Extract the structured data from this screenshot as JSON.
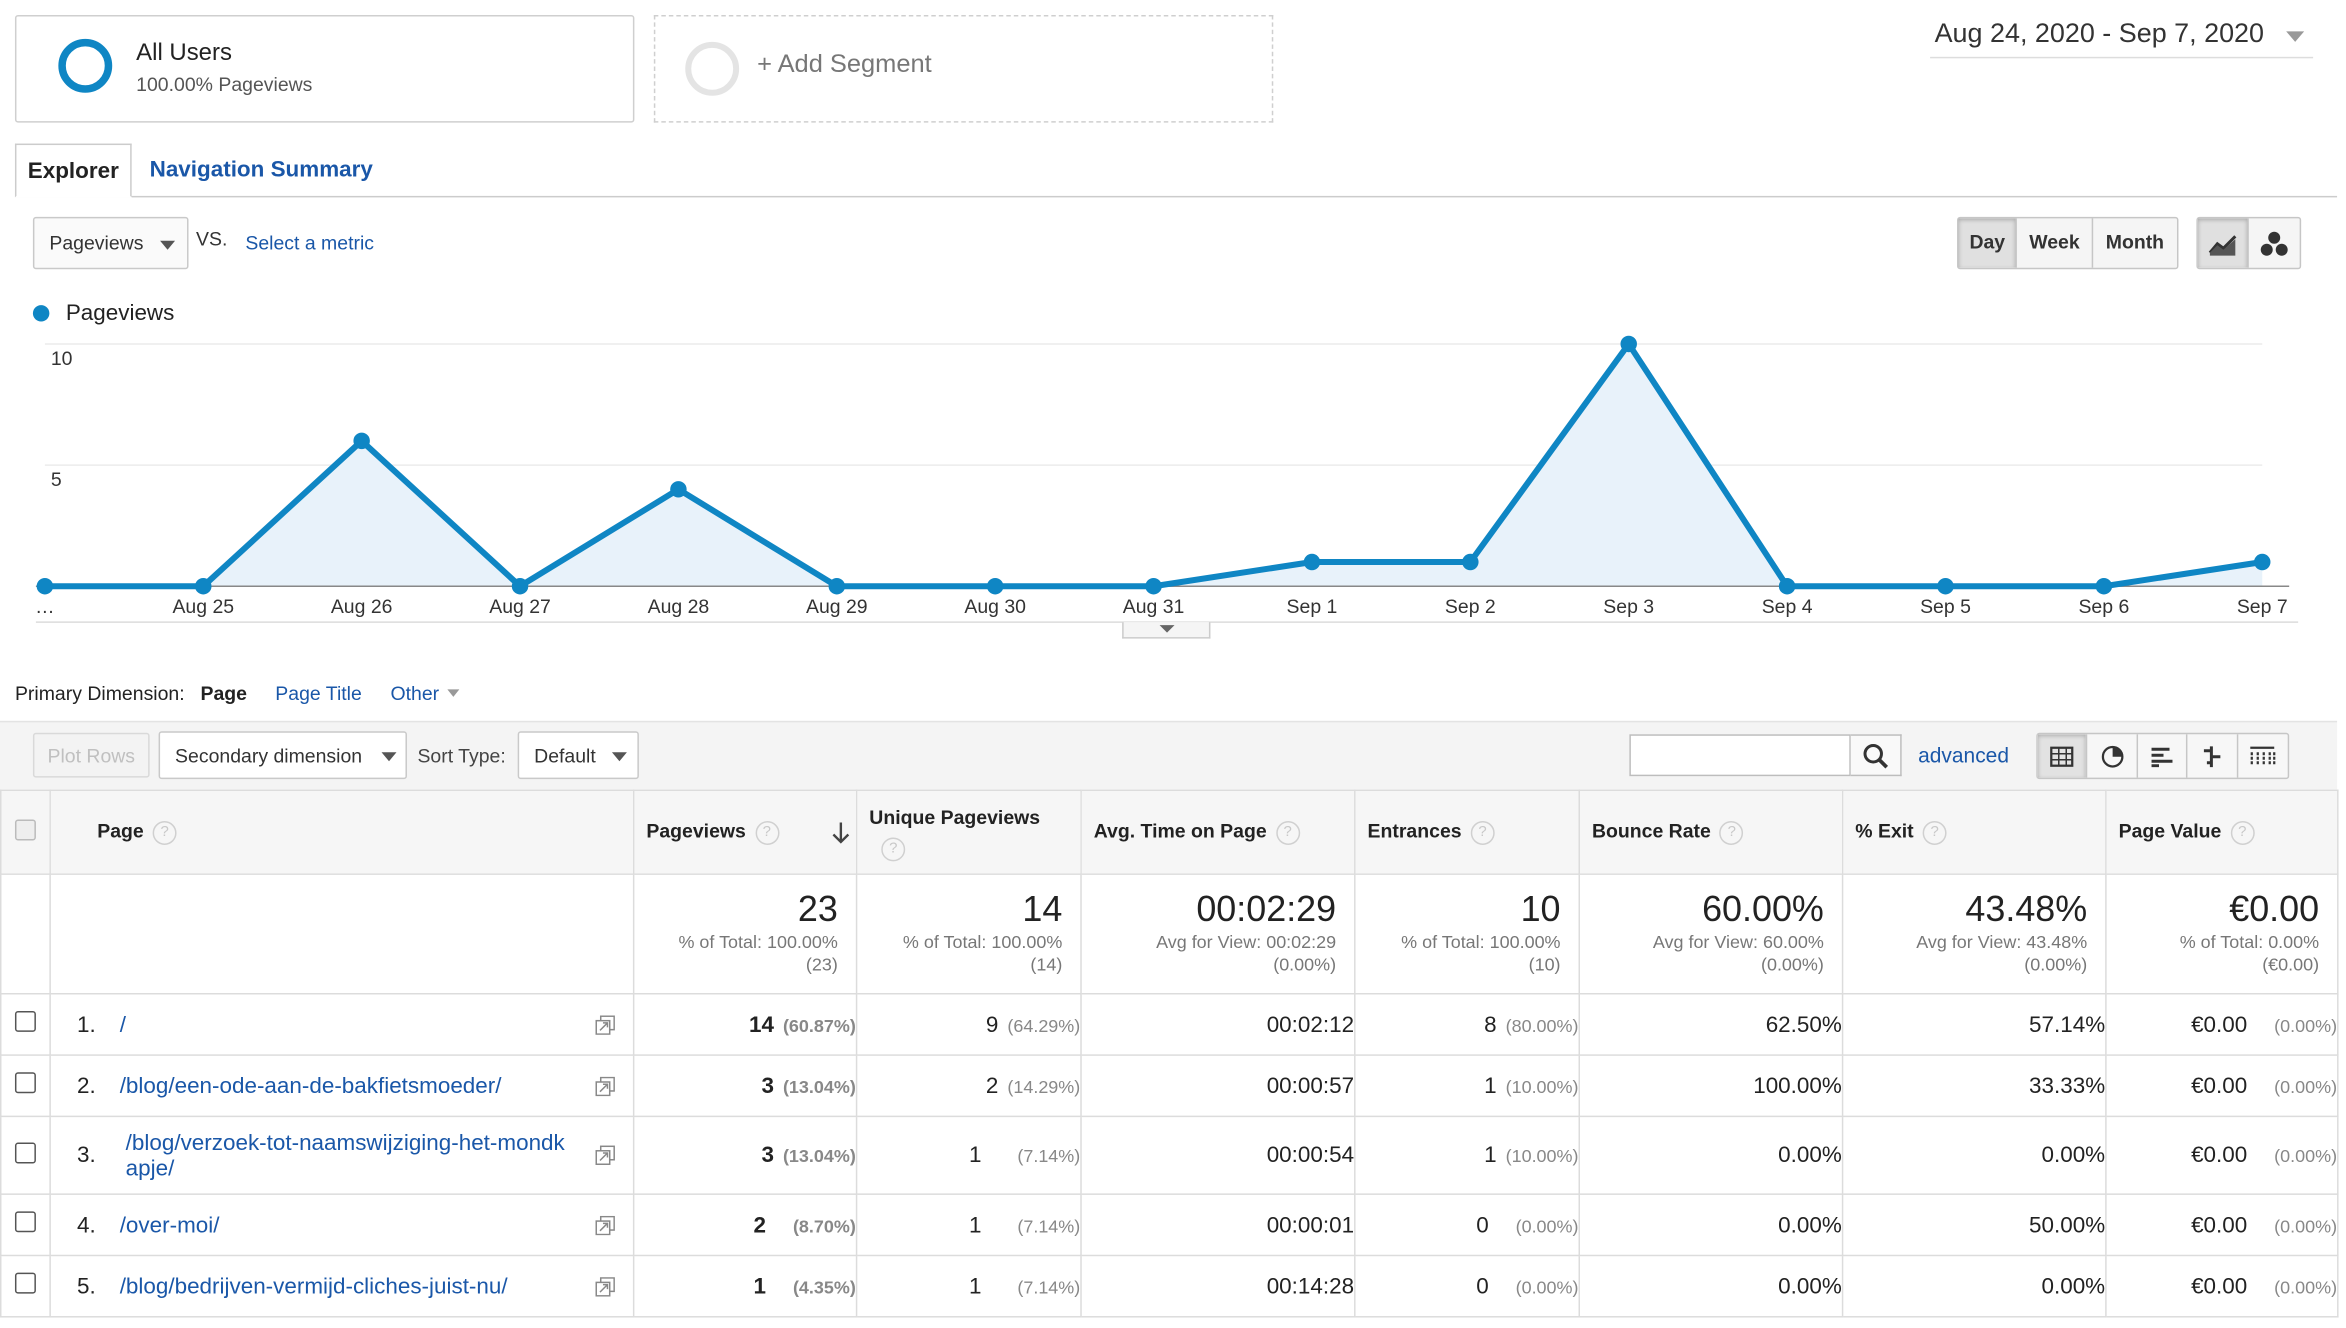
{
  "segments": {
    "active": {
      "title": "All Users",
      "subtitle": "100.00% Pageviews"
    },
    "add_label": "+ Add Segment"
  },
  "date_range": "Aug 24, 2020 - Sep 7, 2020",
  "tabs": {
    "explorer": "Explorer",
    "navigation_summary": "Navigation Summary"
  },
  "metric_selector": {
    "primary": "Pageviews",
    "vs": "VS.",
    "select_metric": "Select a metric"
  },
  "granularity": {
    "day": "Day",
    "week": "Week",
    "month": "Month",
    "selected": "Day"
  },
  "chart_data": {
    "type": "area",
    "series": [
      {
        "name": "Pageviews",
        "values": [
          0,
          0,
          6,
          0,
          4,
          0,
          0,
          0,
          1,
          1,
          10,
          0,
          0,
          0,
          1
        ]
      }
    ],
    "x": [
      "…",
      "Aug 25",
      "Aug 26",
      "Aug 27",
      "Aug 28",
      "Aug 29",
      "Aug 30",
      "Aug 31",
      "Sep 1",
      "Sep 2",
      "Sep 3",
      "Sep 4",
      "Sep 5",
      "Sep 6",
      "Sep 7"
    ],
    "y_ticks": [
      "5",
      "10"
    ],
    "ylim": [
      0,
      10
    ],
    "grid": true,
    "color": "#0f86c4",
    "fill": "#e8f2fa"
  },
  "primary_dimension": {
    "label": "Primary Dimension:",
    "page": "Page",
    "page_title": "Page Title",
    "other": "Other"
  },
  "toolbar": {
    "plot_rows": "Plot Rows",
    "secondary_dimension": "Secondary dimension",
    "sort_type_label": "Sort Type:",
    "sort_type_value": "Default",
    "advanced": "advanced"
  },
  "table": {
    "headers": {
      "page": "Page",
      "pageviews": "Pageviews",
      "unique_pageviews": "Unique Pageviews",
      "avg_time": "Avg. Time on Page",
      "entrances": "Entrances",
      "bounce_rate": "Bounce Rate",
      "exit": "% Exit",
      "page_value": "Page Value"
    },
    "totals": {
      "pageviews": {
        "value": "23",
        "l1": "% of Total: 100.00%",
        "l2": "(23)"
      },
      "unique_pageviews": {
        "value": "14",
        "l1": "% of Total: 100.00%",
        "l2": "(14)"
      },
      "avg_time": {
        "value": "00:02:29",
        "l1": "Avg for View: 00:02:29",
        "l2": "(0.00%)"
      },
      "entrances": {
        "value": "10",
        "l1": "% of Total: 100.00%",
        "l2": "(10)"
      },
      "bounce_rate": {
        "value": "60.00%",
        "l1": "Avg for View: 60.00%",
        "l2": "(0.00%)"
      },
      "exit": {
        "value": "43.48%",
        "l1": "Avg for View: 43.48%",
        "l2": "(0.00%)"
      },
      "page_value": {
        "value": "€0.00",
        "l1": "% of Total: 0.00%",
        "l2": "(€0.00)"
      }
    },
    "rows": [
      {
        "idx": "1.",
        "page": "/",
        "pv": "14",
        "pv_pct": "(60.87%)",
        "upv": "9",
        "upv_pct": "(64.29%)",
        "time": "00:02:12",
        "ent": "8",
        "ent_pct": "(80.00%)",
        "bounce": "62.50%",
        "exit": "57.14%",
        "value": "€0.00",
        "value_pct": "(0.00%)"
      },
      {
        "idx": "2.",
        "page": "/blog/een-ode-aan-de-bakfietsmoeder/",
        "pv": "3",
        "pv_pct": "(13.04%)",
        "upv": "2",
        "upv_pct": "(14.29%)",
        "time": "00:00:57",
        "ent": "1",
        "ent_pct": "(10.00%)",
        "bounce": "100.00%",
        "exit": "33.33%",
        "value": "€0.00",
        "value_pct": "(0.00%)"
      },
      {
        "idx": "3.",
        "page_l1": "/blog/verzoek-tot-naamswijziging-het-mondk",
        "page_l2": "apje/",
        "pv": "3",
        "pv_pct": "(13.04%)",
        "upv": "1",
        "upv_pct": "(7.14%)",
        "time": "00:00:54",
        "ent": "1",
        "ent_pct": "(10.00%)",
        "bounce": "0.00%",
        "exit": "0.00%",
        "value": "€0.00",
        "value_pct": "(0.00%)"
      },
      {
        "idx": "4.",
        "page": "/over-moi/",
        "pv": "2",
        "pv_pct": "(8.70%)",
        "upv": "1",
        "upv_pct": "(7.14%)",
        "time": "00:00:01",
        "ent": "0",
        "ent_pct": "(0.00%)",
        "bounce": "0.00%",
        "exit": "50.00%",
        "value": "€0.00",
        "value_pct": "(0.00%)"
      },
      {
        "idx": "5.",
        "page": "/blog/bedrijven-vermijd-cliches-juist-nu/",
        "pv": "1",
        "pv_pct": "(4.35%)",
        "upv": "1",
        "upv_pct": "(7.14%)",
        "time": "00:14:28",
        "ent": "0",
        "ent_pct": "(0.00%)",
        "bounce": "0.00%",
        "exit": "0.00%",
        "value": "€0.00",
        "value_pct": "(0.00%)"
      }
    ]
  }
}
